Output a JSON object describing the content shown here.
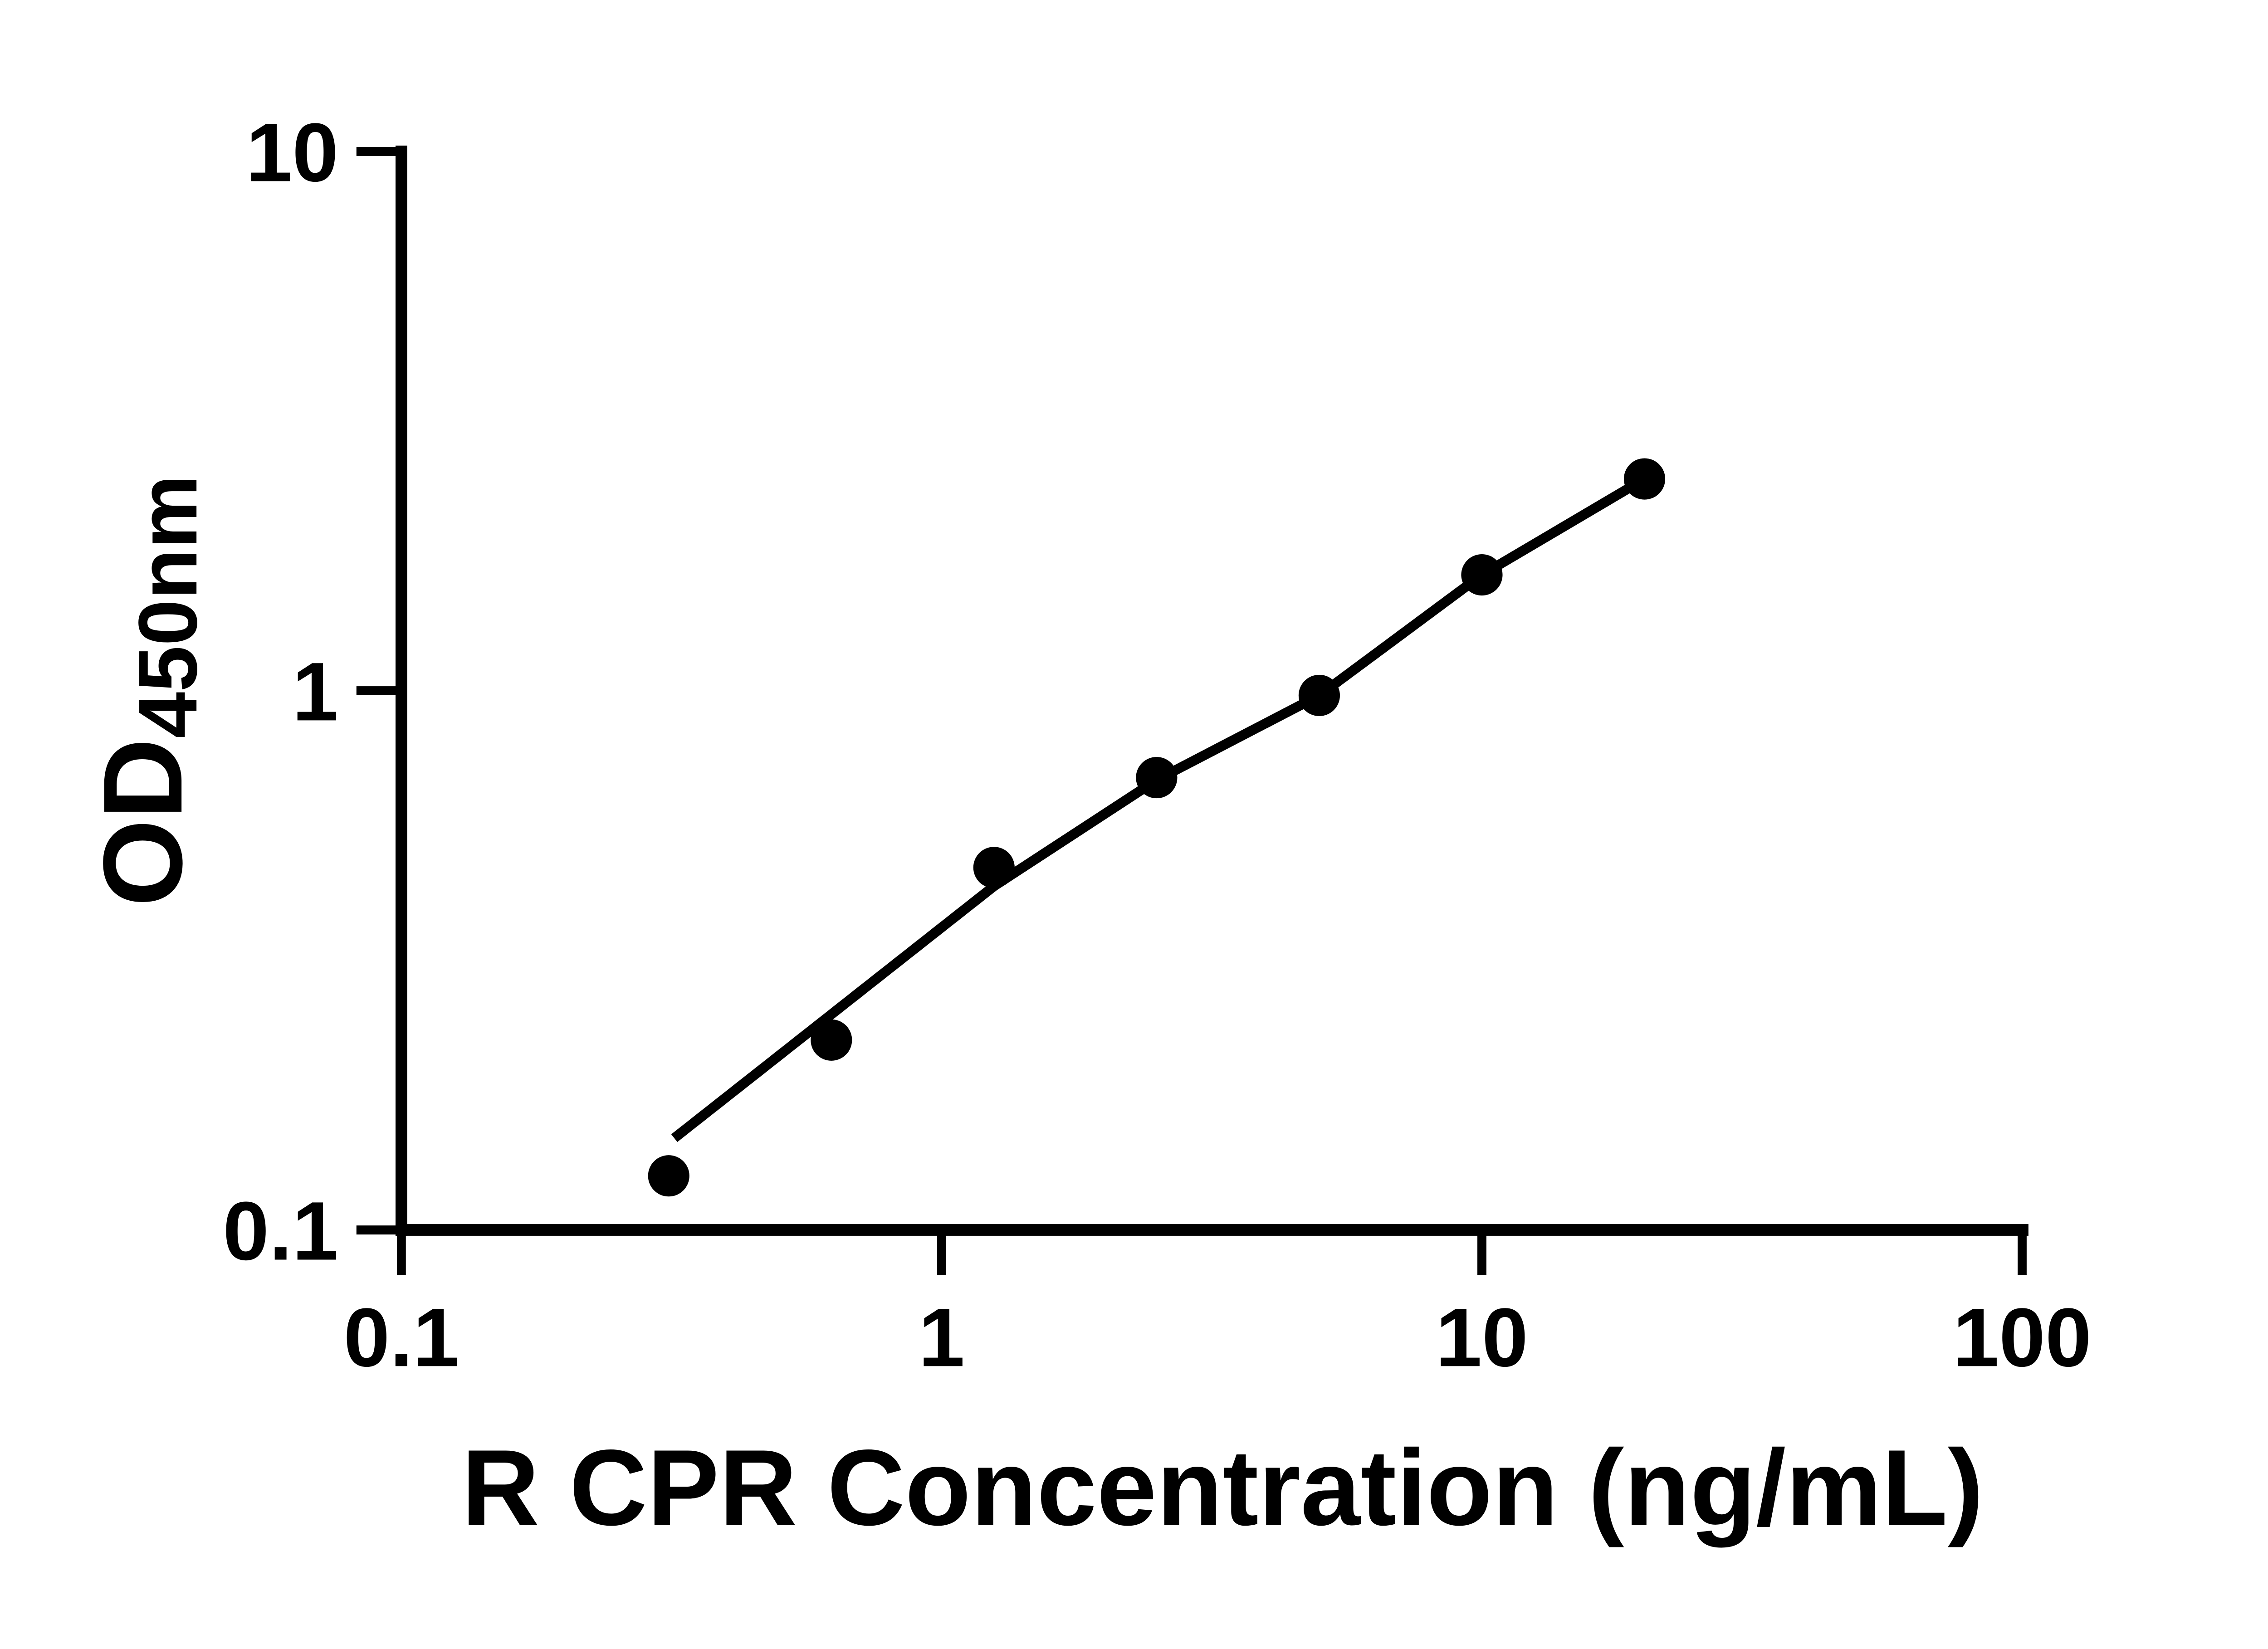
{
  "page": {
    "background": "#ffffff",
    "ink": "#000000"
  },
  "chart_data": {
    "type": "scatter",
    "title": "",
    "xlabel": "R CPR Concentration (ng/mL)",
    "ylabel_base": "OD",
    "ylabel_subscript": "450nm",
    "x_scale": "log",
    "y_scale": "log",
    "xlim": [
      0.1,
      100
    ],
    "ylim": [
      0.1,
      10
    ],
    "x_ticks": [
      "0.1",
      "1",
      "10",
      "100"
    ],
    "y_ticks": [
      "10",
      "1",
      "0.1"
    ],
    "grid": false,
    "legend": null,
    "marker": {
      "shape": "circle",
      "color": "#000000"
    },
    "line_color": "#000000",
    "points": [
      {
        "x": 0.3125,
        "y": 0.126
      },
      {
        "x": 0.625,
        "y": 0.225
      },
      {
        "x": 1.25,
        "y": 0.47
      },
      {
        "x": 2.5,
        "y": 0.69
      },
      {
        "x": 5,
        "y": 0.98
      },
      {
        "x": 10,
        "y": 1.64
      },
      {
        "x": 20,
        "y": 2.47
      }
    ],
    "trend_line": [
      {
        "x": 0.32,
        "y": 0.148
      },
      {
        "x": 1.25,
        "y": 0.434
      },
      {
        "x": 2.5,
        "y": 0.683
      },
      {
        "x": 5,
        "y": 0.98
      },
      {
        "x": 10,
        "y": 1.64
      },
      {
        "x": 20,
        "y": 2.47
      }
    ]
  }
}
